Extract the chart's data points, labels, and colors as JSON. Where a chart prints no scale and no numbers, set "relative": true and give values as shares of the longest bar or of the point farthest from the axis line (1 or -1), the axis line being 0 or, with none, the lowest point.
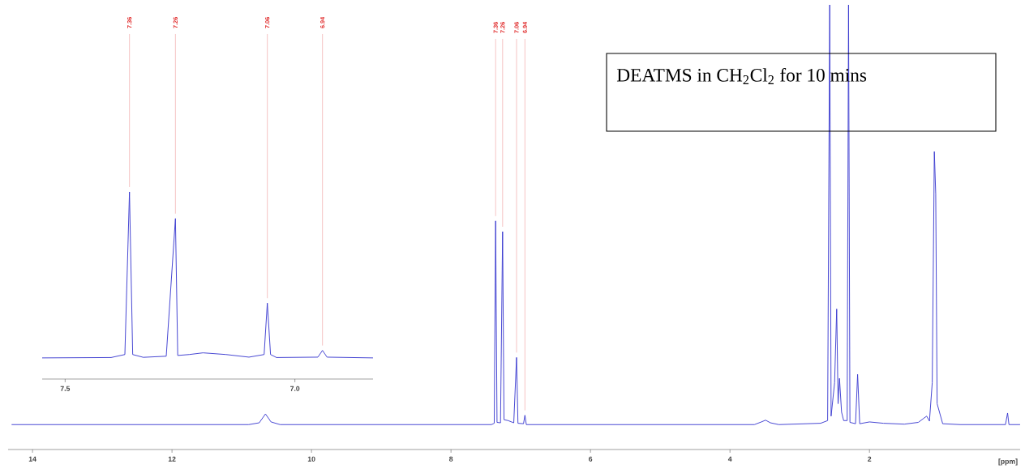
{
  "chart_data": [
    {
      "type": "line",
      "relative": true,
      "xlabel": "[ppm]",
      "xlim": [
        14.35,
        -0.16
      ],
      "xticks": [
        14,
        12,
        10,
        8,
        6,
        4,
        2
      ],
      "tick_labels": "x",
      "series": [
        {
          "color": "#3a3ad0",
          "x": [
            14.3,
            10.9,
            10.75,
            10.66,
            10.58,
            10.45,
            7.42,
            7.38,
            7.36,
            7.34,
            7.29,
            7.26,
            7.24,
            7.18,
            7.1,
            7.06,
            7.04,
            6.96,
            6.94,
            6.92,
            3.65,
            3.55,
            3.49,
            3.42,
            3.3,
            2.7,
            2.6,
            2.57,
            2.55,
            2.5,
            2.47,
            2.45,
            2.43,
            2.4,
            2.37,
            2.32,
            2.3,
            2.28,
            2.2,
            2.17,
            2.14,
            2.0,
            1.8,
            1.5,
            1.3,
            1.18,
            1.14,
            1.1,
            1.07,
            1.05,
            1.03,
            0.95,
            0.7,
            0.05,
            0.02,
            0.0,
            -0.16
          ],
          "values": [
            0.056,
            0.056,
            0.06,
            0.08,
            0.062,
            0.056,
            0.056,
            0.059,
            0.514,
            0.061,
            0.06,
            0.49,
            0.067,
            0.065,
            0.06,
            0.207,
            0.059,
            0.058,
            0.077,
            0.056,
            0.056,
            0.062,
            0.066,
            0.06,
            0.056,
            0.059,
            0.065,
            1.0,
            0.075,
            0.15,
            0.316,
            0.103,
            0.16,
            0.084,
            0.065,
            0.065,
            1.0,
            0.061,
            0.058,
            0.169,
            0.058,
            0.062,
            0.059,
            0.057,
            0.061,
            0.075,
            0.064,
            0.15,
            0.67,
            0.575,
            0.103,
            0.058,
            0.056,
            0.056,
            0.082,
            0.056,
            0.056
          ]
        }
      ],
      "annotations": [
        "DEATMS in CH$_{2}$Cl$_{2}$ for 10 mins",
        {
          "text": "7.36",
          "x": 7.36,
          "y": 0.514
        },
        {
          "text": "7.26",
          "x": 7.26,
          "y": 0.49
        },
        {
          "text": "7.06",
          "x": 7.06,
          "y": 0.207
        },
        {
          "text": "6.94",
          "x": 6.94,
          "y": 0.077
        }
      ]
    },
    {
      "type": "line",
      "relative": true,
      "xlim": [
        7.55,
        6.83
      ],
      "xticks": [
        {
          "value": 7.5,
          "label": "7.5"
        },
        {
          "value": 7,
          "label": "7.0"
        }
      ],
      "tick_labels": "x",
      "series": [
        {
          "color": "#3a3ad0",
          "x": [
            7.55,
            7.4,
            7.37,
            7.36,
            7.353,
            7.33,
            7.28,
            7.26,
            7.255,
            7.23,
            7.2,
            7.15,
            7.1,
            7.067,
            7.06,
            7.053,
            7.04,
            6.95,
            6.94,
            6.93,
            6.83
          ],
          "values": [
            0.113,
            0.115,
            0.131,
            1.0,
            0.131,
            0.116,
            0.122,
            0.858,
            0.126,
            0.131,
            0.14,
            0.131,
            0.117,
            0.131,
            0.406,
            0.131,
            0.115,
            0.117,
            0.153,
            0.117,
            0.113
          ]
        }
      ],
      "annotations": [
        {
          "text": "7.36",
          "x": 7.36,
          "y": 1.0
        },
        {
          "text": "7.26",
          "x": 7.26,
          "y": 0.858
        },
        {
          "text": "7.06",
          "x": 7.06,
          "y": 0.406
        },
        {
          "text": "6.94",
          "x": 6.94,
          "y": 0.153
        }
      ]
    }
  ]
}
